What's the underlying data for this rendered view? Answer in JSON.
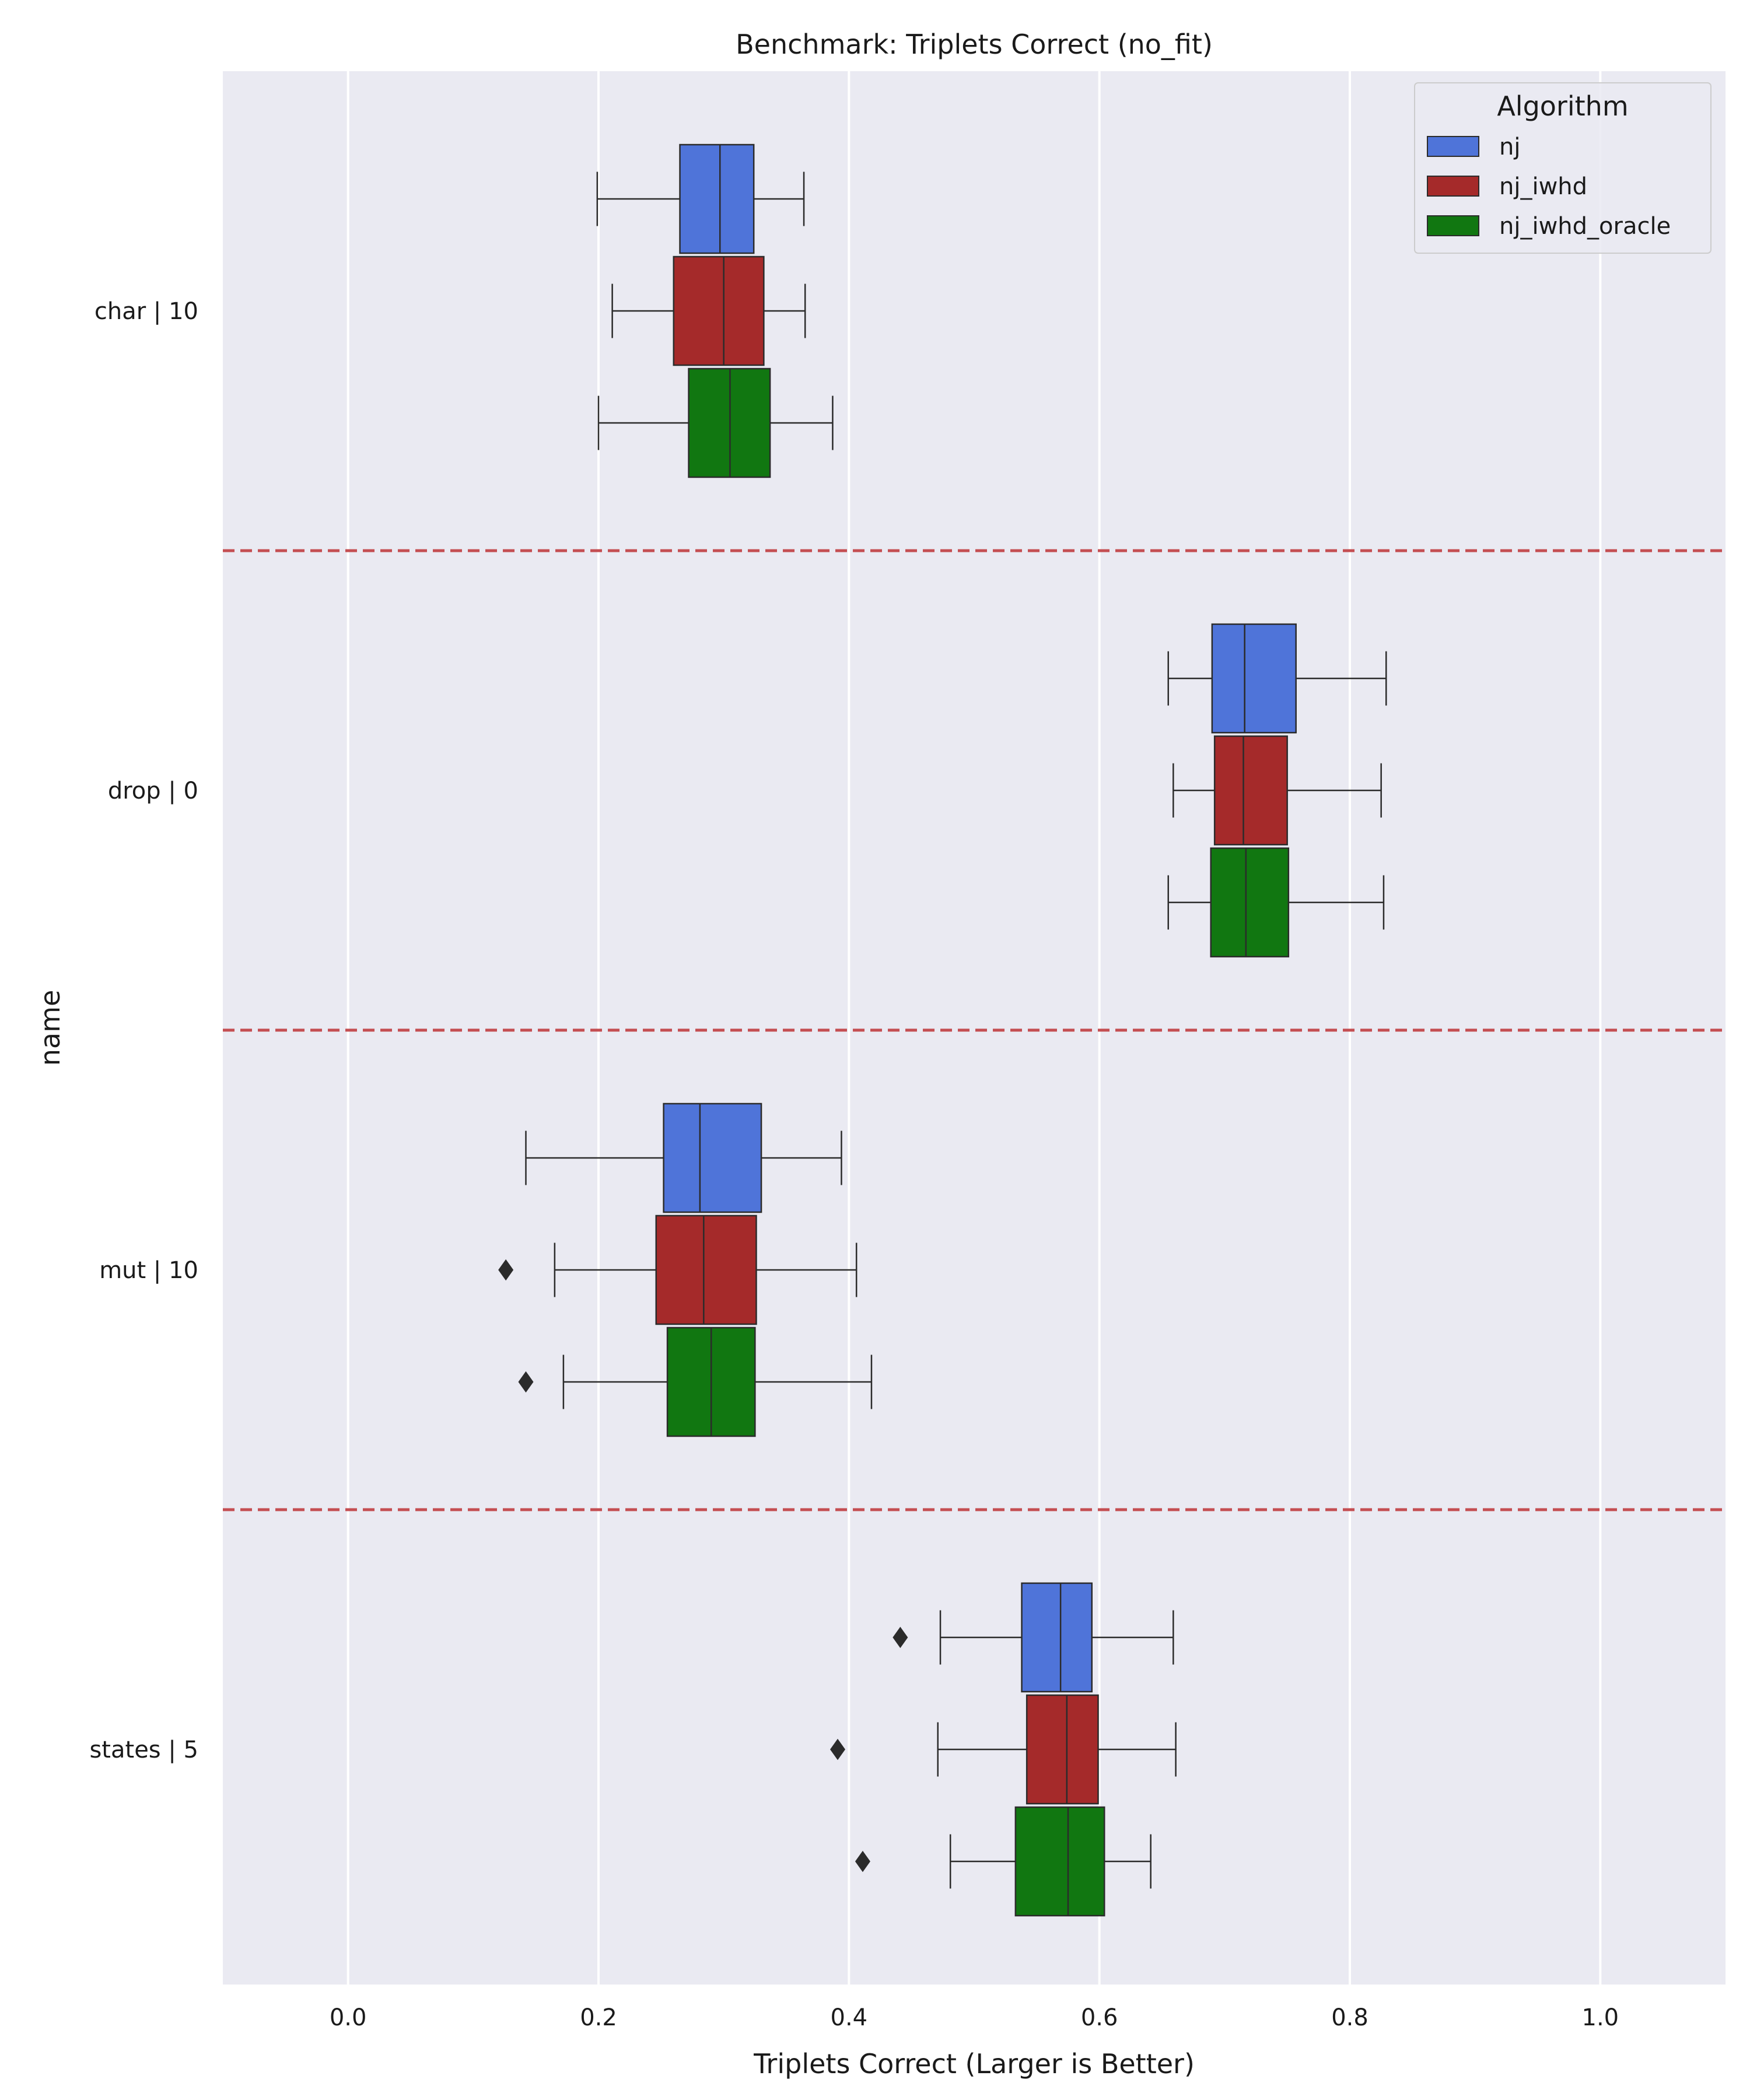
{
  "chart_data": {
    "type": "box",
    "orientation": "horizontal",
    "title": "Benchmark: Triplets Correct (no_fit)",
    "xlabel": "Triplets Correct (Larger is Better)",
    "ylabel": "name",
    "xlim": [
      -0.1,
      1.1
    ],
    "xticks": [
      0.0,
      0.2,
      0.4,
      0.6,
      0.8,
      1.0
    ],
    "xtick_labels": [
      "0.0",
      "0.2",
      "0.4",
      "0.6",
      "0.8",
      "1.0"
    ],
    "grid": true,
    "categories": [
      "char | 10",
      "drop | 0",
      "mut | 10",
      "states | 5"
    ],
    "separator_color": "#c44e52",
    "legend": {
      "title": "Algorithm",
      "placement": "top-right"
    },
    "series": [
      {
        "name": "nj",
        "color": "#4f74d9",
        "boxes": [
          {
            "whislo": 0.199,
            "q1": 0.265,
            "med": 0.297,
            "q3": 0.324,
            "whishi": 0.364,
            "fliers": []
          },
          {
            "whislo": 0.655,
            "q1": 0.69,
            "med": 0.716,
            "q3": 0.757,
            "whishi": 0.829,
            "fliers": []
          },
          {
            "whislo": 0.142,
            "q1": 0.252,
            "med": 0.281,
            "q3": 0.33,
            "whishi": 0.394,
            "fliers": []
          },
          {
            "whislo": 0.473,
            "q1": 0.538,
            "med": 0.569,
            "q3": 0.594,
            "whishi": 0.659,
            "fliers": [
              0.441
            ]
          }
        ]
      },
      {
        "name": "nj_iwhd",
        "color": "#a52a2a",
        "boxes": [
          {
            "whislo": 0.211,
            "q1": 0.26,
            "med": 0.3,
            "q3": 0.332,
            "whishi": 0.365,
            "fliers": []
          },
          {
            "whislo": 0.659,
            "q1": 0.692,
            "med": 0.715,
            "q3": 0.75,
            "whishi": 0.825,
            "fliers": []
          },
          {
            "whislo": 0.165,
            "q1": 0.246,
            "med": 0.284,
            "q3": 0.326,
            "whishi": 0.406,
            "fliers": [
              0.126
            ]
          },
          {
            "whislo": 0.471,
            "q1": 0.542,
            "med": 0.574,
            "q3": 0.599,
            "whishi": 0.661,
            "fliers": [
              0.391
            ]
          }
        ]
      },
      {
        "name": "nj_iwhd_oracle",
        "color": "#117711",
        "boxes": [
          {
            "whislo": 0.2,
            "q1": 0.272,
            "med": 0.305,
            "q3": 0.337,
            "whishi": 0.387,
            "fliers": []
          },
          {
            "whislo": 0.655,
            "q1": 0.689,
            "med": 0.717,
            "q3": 0.751,
            "whishi": 0.827,
            "fliers": []
          },
          {
            "whislo": 0.172,
            "q1": 0.255,
            "med": 0.29,
            "q3": 0.325,
            "whishi": 0.418,
            "fliers": [
              0.142
            ]
          },
          {
            "whislo": 0.481,
            "q1": 0.533,
            "med": 0.575,
            "q3": 0.604,
            "whishi": 0.641,
            "fliers": [
              0.411
            ]
          }
        ]
      }
    ]
  }
}
